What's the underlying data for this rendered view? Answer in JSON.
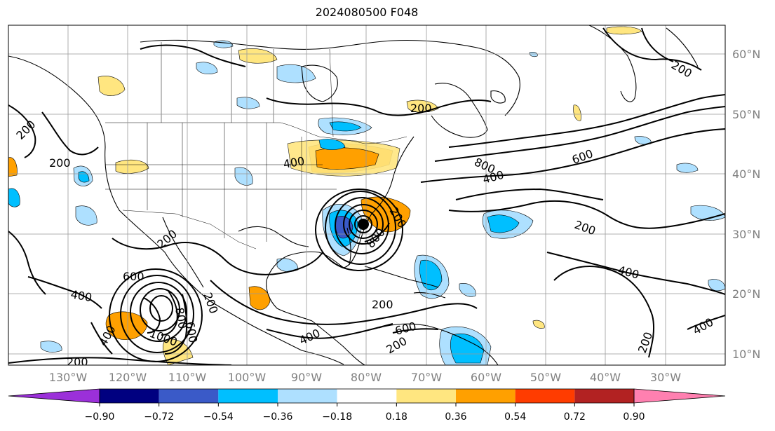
{
  "title": "2024080500 F048",
  "map": {
    "lon_labels": [
      "130°W",
      "120°W",
      "110°W",
      "100°W",
      "90°W",
      "80°W",
      "70°W",
      "60°W",
      "50°W",
      "40°W",
      "30°W"
    ],
    "lat_labels": [
      "60°N",
      "50°N",
      "40°N",
      "30°N",
      "20°N",
      "10°N"
    ],
    "contour_labels": [
      "200",
      "200",
      "200",
      "200",
      "200",
      "200",
      "200",
      "200",
      "200",
      "200",
      "200",
      "200",
      "400",
      "400",
      "400",
      "400",
      "400",
      "400",
      "400",
      "600",
      "600",
      "600",
      "600",
      "800",
      "800",
      "800",
      "1000"
    ]
  },
  "colorbar": {
    "ticks": [
      "−0.90",
      "−0.72",
      "−0.54",
      "−0.36",
      "−0.18",
      "0.18",
      "0.36",
      "0.54",
      "0.72",
      "0.90"
    ],
    "colors": [
      "#9b30d9",
      "#000080",
      "#3a5ac8",
      "#00bfff",
      "#aee0ff",
      "#ffffff",
      "#ffe680",
      "#ffa000",
      "#ff3c00",
      "#b22222",
      "#ff80b0"
    ]
  },
  "chart_data": {
    "type": "heatmap",
    "title": "2024080500 F048",
    "x_range": [
      "135°W",
      "25°W"
    ],
    "y_range": [
      "8°N",
      "65°N"
    ],
    "color_levels": [
      -0.9,
      -0.72,
      -0.54,
      -0.36,
      -0.18,
      0.18,
      0.36,
      0.54,
      0.72,
      0.9
    ],
    "contour_levels": [
      200,
      400,
      600,
      800,
      1000
    ],
    "grid": true
  }
}
